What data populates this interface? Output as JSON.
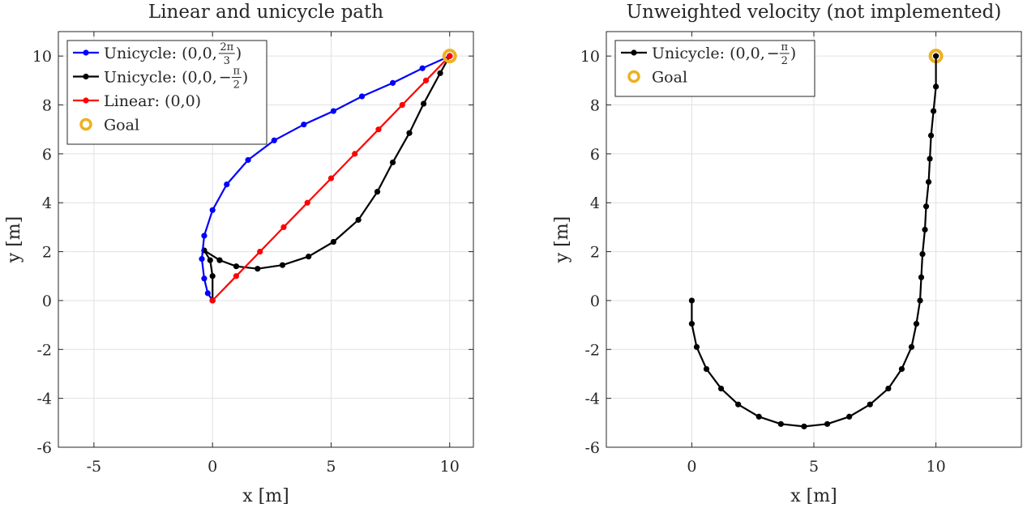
{
  "chart_data": [
    {
      "type": "line",
      "title": "Linear and unicycle path",
      "xlabel": "x [m]",
      "ylabel": "y [m]",
      "xlim": [
        -6.5,
        11
      ],
      "ylim": [
        -6,
        11
      ],
      "xticks": [
        -5,
        0,
        5,
        10
      ],
      "xtick_labels": [
        "-5",
        "0",
        "5",
        "10"
      ],
      "yticks": [
        -6,
        -4,
        -2,
        0,
        2,
        4,
        6,
        8,
        10
      ],
      "ytick_labels": [
        "-6",
        "-4",
        "-2",
        "0",
        "2",
        "4",
        "6",
        "8",
        "10"
      ],
      "grid": true,
      "legend_position": "top-left",
      "series": [
        {
          "name": "Unicycle: (0,0,2π/3)",
          "legend_main": "Unicycle: (0,0,",
          "legend_frac_num": "2π",
          "legend_frac_den": "3",
          "legend_minus": "",
          "legend_close": ")",
          "color": "#0000ff",
          "x": [
            0.0,
            -0.2,
            -0.35,
            -0.45,
            -0.35,
            0.0,
            0.6,
            1.5,
            2.6,
            3.85,
            5.1,
            6.3,
            7.6,
            8.85,
            10.0
          ],
          "y": [
            0.0,
            0.3,
            0.9,
            1.7,
            2.65,
            3.7,
            4.75,
            5.75,
            6.55,
            7.2,
            7.75,
            8.35,
            8.9,
            9.5,
            10.0
          ]
        },
        {
          "name": "Unicycle: (0,0,−π/2)",
          "legend_main": "Unicycle: (0,0,",
          "legend_frac_num": "π",
          "legend_frac_den": "2",
          "legend_minus": "−",
          "legend_close": ")",
          "color": "#000000",
          "x": [
            0.0,
            0.0,
            -0.1,
            -0.35,
            0.3,
            1.0,
            1.9,
            2.95,
            4.05,
            5.1,
            6.15,
            6.95,
            7.6,
            8.3,
            8.9,
            9.6,
            10.0
          ],
          "y": [
            0.0,
            1.0,
            1.65,
            2.05,
            1.65,
            1.4,
            1.3,
            1.45,
            1.8,
            2.4,
            3.3,
            4.45,
            5.65,
            6.85,
            8.05,
            9.3,
            10.0
          ]
        },
        {
          "name": "Linear: (0,0)",
          "legend_main": "Linear: (0,0)",
          "color": "#ff0000",
          "x": [
            0,
            1,
            2,
            3,
            4,
            5,
            6,
            7,
            8,
            9,
            10
          ],
          "y": [
            0,
            1,
            2,
            3,
            4,
            5,
            6,
            7,
            8,
            9,
            10
          ]
        }
      ],
      "goal": {
        "name": "Goal",
        "x": 10,
        "y": 10,
        "color": "#edb120"
      }
    },
    {
      "type": "line",
      "title": "Unweighted velocity (not implemented)",
      "xlabel": "x [m]",
      "ylabel": "y [m]",
      "xlim": [
        -3.5,
        13.5
      ],
      "ylim": [
        -6,
        11
      ],
      "xticks": [
        0,
        5,
        10
      ],
      "xtick_labels": [
        "0",
        "5",
        "10"
      ],
      "yticks": [
        -6,
        -4,
        -2,
        0,
        2,
        4,
        6,
        8,
        10
      ],
      "ytick_labels": [
        "-6",
        "-4",
        "-2",
        "0",
        "2",
        "4",
        "6",
        "8",
        "10"
      ],
      "grid": true,
      "legend_position": "top-left",
      "series": [
        {
          "name": "Unicycle: (0,0,−π/2)",
          "legend_main": "Unicycle: (0,0,",
          "legend_frac_num": "π",
          "legend_frac_den": "2",
          "legend_minus": "−",
          "legend_close": ")",
          "color": "#000000",
          "x": [
            0.0,
            0.0,
            0.2,
            0.6,
            1.2,
            1.9,
            2.75,
            3.65,
            4.6,
            5.55,
            6.45,
            7.3,
            8.05,
            8.6,
            9.0,
            9.2,
            9.35,
            9.4,
            9.45,
            9.55,
            9.6,
            9.7,
            9.75,
            9.8,
            9.9,
            10.0
          ],
          "y": [
            0.0,
            -0.95,
            -1.9,
            -2.8,
            -3.6,
            -4.25,
            -4.75,
            -5.05,
            -5.15,
            -5.05,
            -4.75,
            -4.25,
            -3.6,
            -2.8,
            -1.9,
            -0.95,
            0.0,
            0.95,
            1.9,
            2.9,
            3.85,
            4.85,
            5.8,
            6.75,
            7.75,
            8.75
          ]
        }
      ],
      "goal": {
        "name": "Goal",
        "x": 10,
        "y": 10,
        "color": "#edb120"
      }
    }
  ]
}
